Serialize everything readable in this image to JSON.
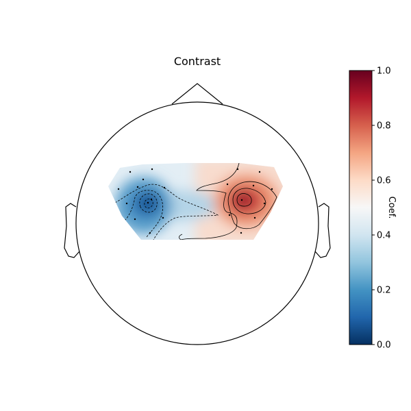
{
  "chart_data": {
    "type": "heatmap",
    "title": "Contrast",
    "colorbar": {
      "label": "Coef.",
      "range": [
        0.0,
        1.0
      ],
      "ticks": [
        "0.0",
        "0.2",
        "0.4",
        "0.6",
        "0.8",
        "1.0"
      ],
      "colormap": "RdBu_r"
    },
    "contour_levels": [
      0.2,
      0.4,
      0.6,
      0.8
    ],
    "grid": false,
    "legend": "none",
    "colors": {
      "low": "#053061",
      "mid": "#f7f7f7",
      "high": "#67001f"
    }
  }
}
